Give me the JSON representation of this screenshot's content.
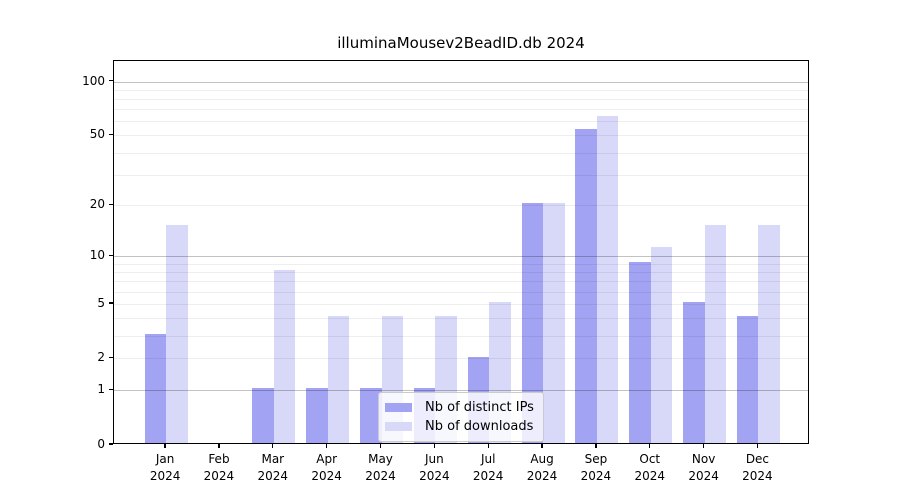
{
  "title": "illuminaMousev2BeadID.db 2024",
  "legend": {
    "items": [
      {
        "label": "Nb of distinct IPs",
        "color": "#a3a3f3"
      },
      {
        "label": "Nb of downloads",
        "color": "#d8d8f8"
      }
    ]
  },
  "axes": {
    "y_tick_labels": [
      "100",
      "50",
      "20",
      "10",
      "5",
      "2",
      "1",
      "0"
    ],
    "x_tick_labels": [
      "Jan 2024",
      "Feb 2024",
      "Mar 2024",
      "Apr 2024",
      "May 2024",
      "Jun 2024",
      "Jul 2024",
      "Aug 2024",
      "Sep 2024",
      "Oct 2024",
      "Nov 2024",
      "Dec 2024"
    ]
  },
  "chart_data": {
    "type": "bar",
    "title": "illuminaMousev2BeadID.db 2024",
    "categories": [
      "Jan 2024",
      "Feb 2024",
      "Mar 2024",
      "Apr 2024",
      "May 2024",
      "Jun 2024",
      "Jul 2024",
      "Aug 2024",
      "Sep 2024",
      "Oct 2024",
      "Nov 2024",
      "Dec 2024"
    ],
    "series": [
      {
        "name": "Nb of distinct IPs",
        "color": "#a3a3f3",
        "values": [
          3,
          0,
          1,
          1,
          1,
          1,
          2,
          20,
          53,
          9,
          5,
          4
        ]
      },
      {
        "name": "Nb of downloads",
        "color": "#d8d8f8",
        "values": [
          15,
          0,
          8,
          4,
          4,
          4,
          5,
          20,
          63,
          11,
          15,
          15
        ]
      }
    ],
    "xlabel": "",
    "ylabel": "",
    "yscale": "log1p",
    "yticks": [
      0,
      1,
      2,
      5,
      10,
      20,
      50,
      100
    ],
    "minor_gridlines": [
      2,
      3,
      4,
      5,
      6,
      7,
      8,
      9,
      20,
      30,
      40,
      50,
      60,
      70,
      80,
      90
    ],
    "major_gridlines": [
      1,
      10,
      100
    ],
    "ylim": [
      0,
      130
    ],
    "grid": true,
    "grid_above_bars": true,
    "legend_position": "inside lower center"
  }
}
